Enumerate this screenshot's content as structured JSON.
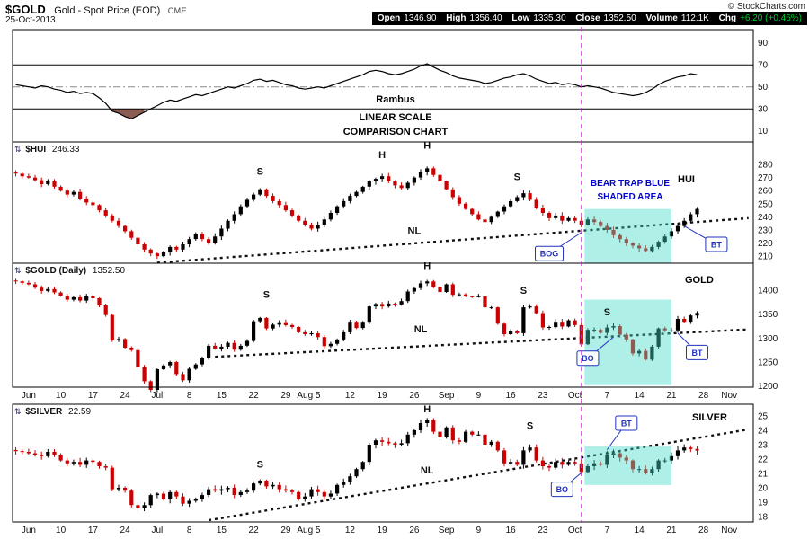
{
  "header": {
    "symbol": "$GOLD",
    "description": "Gold - Spot Price (EOD)",
    "exchange": "CME",
    "date": "25-Oct-2013",
    "copyright": "© StockCharts.com",
    "quote": [
      {
        "label": "Open",
        "value": "1346.90"
      },
      {
        "label": "High",
        "value": "1356.40"
      },
      {
        "label": "Low",
        "value": "1335.30"
      },
      {
        "label": "Close",
        "value": "1352.50"
      },
      {
        "label": "Volume",
        "value": "112.1K"
      },
      {
        "label": "Chg",
        "value": "+6.20 (+0.46%)"
      }
    ]
  },
  "panels": {
    "hui_label": {
      "symbol": "$HUI",
      "value": "246.33"
    },
    "gold_label": {
      "symbol": "$GOLD (Daily)",
      "value": "1352.50"
    },
    "silver_label": {
      "symbol": "$SILVER",
      "value": "22.59"
    },
    "hui_name": "HUI",
    "gold_name": "GOLD",
    "silver_name": "SILVER",
    "bear_trap_line1": "BEAR TRAP BLUE",
    "bear_trap_line2": "SHADED AREA",
    "indicator_line1": "Rambus",
    "indicator_line2": "LINEAR SCALE",
    "indicator_line3": "COMPARISON CHART"
  },
  "colors": {
    "candle_up": "#000000",
    "candle_down": "#cc0000",
    "bear_trap_fill": "#3fd9c6",
    "bear_trap_opacity": 0.42,
    "callout": "#2233bb",
    "divider": "#cc33cc",
    "indicator_shade": "#8b5d52",
    "annotation_blue": "#0000cc",
    "chg_green": "#00cc33",
    "quote_bar_bg": "#000000"
  },
  "divider_i": 88,
  "xaxis": {
    "ticks": [
      {
        "t": "Jun",
        "i": 2
      },
      {
        "t": "10",
        "i": 7
      },
      {
        "t": "17",
        "i": 12
      },
      {
        "t": "24",
        "i": 17
      },
      {
        "t": "Jul",
        "i": 22
      },
      {
        "t": "8",
        "i": 27
      },
      {
        "t": "15",
        "i": 32
      },
      {
        "t": "22",
        "i": 37
      },
      {
        "t": "29",
        "i": 42
      },
      {
        "t": "Aug",
        "i": 45
      },
      {
        "t": "5",
        "i": 47
      },
      {
        "t": "12",
        "i": 52
      },
      {
        "t": "19",
        "i": 57
      },
      {
        "t": "26",
        "i": 62
      },
      {
        "t": "Sep",
        "i": 67
      },
      {
        "t": "9",
        "i": 72
      },
      {
        "t": "16",
        "i": 77
      },
      {
        "t": "23",
        "i": 82
      },
      {
        "t": "Oct",
        "i": 87
      },
      {
        "t": "7",
        "i": 92
      },
      {
        "t": "14",
        "i": 97
      },
      {
        "t": "21",
        "i": 102
      },
      {
        "t": "28",
        "i": 107
      },
      {
        "t": "Nov",
        "i": 111
      }
    ]
  },
  "chart_data": [
    {
      "id": "indicator",
      "type": "line",
      "name": "comparison oscillator",
      "ylim": [
        0,
        102
      ],
      "yticks": [
        90,
        70,
        50,
        30,
        10
      ],
      "hlines": [
        70,
        30
      ],
      "centerline": 50,
      "shade_below": 30,
      "values": [
        52,
        51,
        50,
        49,
        51,
        50,
        48,
        47,
        45,
        46,
        44,
        45,
        44,
        40,
        35,
        28,
        26,
        23,
        21,
        24,
        27,
        30,
        33,
        36,
        38,
        37,
        39,
        41,
        43,
        42,
        44,
        46,
        48,
        50,
        49,
        51,
        53,
        56,
        57,
        55,
        56,
        54,
        52,
        51,
        49,
        48,
        49,
        50,
        49,
        51,
        53,
        55,
        57,
        59,
        61,
        64,
        65,
        64,
        62,
        61,
        62,
        64,
        66,
        69,
        71,
        68,
        65,
        63,
        60,
        58,
        57,
        56,
        55,
        53,
        54,
        56,
        58,
        59,
        61,
        62,
        60,
        57,
        55,
        53,
        54,
        52,
        53,
        52,
        50,
        51,
        50,
        49,
        47,
        45,
        44,
        43,
        42,
        43,
        45,
        48,
        52,
        55,
        57,
        59,
        60,
        62,
        61
      ]
    },
    {
      "id": "hui",
      "type": "candlestick",
      "symbol": "$HUI",
      "last": 246.33,
      "ylim": [
        204.6,
        297.2
      ],
      "yticks": [
        280,
        270,
        260,
        250,
        240,
        230,
        220,
        210
      ],
      "wick": 2.6,
      "closes": [
        273,
        271,
        270,
        268,
        265,
        267,
        263,
        260,
        257,
        259,
        254,
        251,
        249,
        245,
        241,
        237,
        233,
        229,
        224,
        219,
        215,
        212,
        210,
        213,
        217,
        215,
        219,
        223,
        227,
        223,
        220,
        225,
        231,
        237,
        242,
        248,
        253,
        257,
        261,
        256,
        252,
        249,
        245,
        241,
        237,
        234,
        231,
        234,
        238,
        243,
        248,
        252,
        256,
        259,
        263,
        267,
        269,
        271,
        267,
        264,
        262,
        266,
        270,
        274,
        277,
        272,
        267,
        261,
        255,
        250,
        246,
        242,
        238,
        236,
        240,
        244,
        248,
        252,
        255,
        258,
        253,
        247,
        243,
        239,
        241,
        237,
        239,
        237,
        234,
        238,
        236,
        233,
        230,
        226,
        223,
        220,
        218,
        216,
        214,
        217,
        221,
        225,
        229,
        233,
        237,
        242,
        246
      ],
      "neckline": {
        "i1": 22,
        "v1": 205,
        "i2": 114,
        "v2": 239
      },
      "labels": [
        {
          "text": "S",
          "i": 38,
          "v": 272
        },
        {
          "text": "H",
          "i": 57,
          "v": 285
        },
        {
          "text": "H",
          "i": 64,
          "v": 292
        },
        {
          "text": "S",
          "i": 78,
          "v": 268
        },
        {
          "text": "NL",
          "i": 62,
          "v": 227
        }
      ],
      "callouts": [
        {
          "text": "BOG",
          "i": 83,
          "v": 212,
          "ti": 88,
          "tv": 228
        },
        {
          "text": "BT",
          "i": 109,
          "v": 219,
          "ti": 104,
          "tv": 233
        }
      ],
      "bear_trap": {
        "i1": 89,
        "i2": 102.5,
        "v1": 204.6,
        "v2": 246
      }
    },
    {
      "id": "gold",
      "type": "candlestick",
      "symbol": "$GOLD",
      "last": 1352.5,
      "ylim": [
        1197.6,
        1456
      ],
      "yticks": [
        1400,
        1350,
        1300,
        1250,
        1200
      ],
      "wick": 6,
      "closes": [
        1418,
        1415,
        1412,
        1405,
        1398,
        1402,
        1395,
        1388,
        1380,
        1385,
        1378,
        1388,
        1383,
        1368,
        1348,
        1295,
        1298,
        1280,
        1275,
        1240,
        1210,
        1192,
        1235,
        1243,
        1250,
        1225,
        1212,
        1236,
        1245,
        1258,
        1284,
        1278,
        1282,
        1290,
        1276,
        1284,
        1294,
        1335,
        1342,
        1320,
        1328,
        1333,
        1327,
        1323,
        1312,
        1308,
        1310,
        1302,
        1283,
        1288,
        1297,
        1312,
        1334,
        1321,
        1334,
        1366,
        1371,
        1366,
        1372,
        1370,
        1377,
        1397,
        1404,
        1414,
        1418,
        1407,
        1396,
        1412,
        1390,
        1391,
        1387,
        1386,
        1387,
        1364,
        1364,
        1330,
        1308,
        1314,
        1310,
        1364,
        1366,
        1352,
        1322,
        1323,
        1334,
        1324,
        1337,
        1327,
        1287,
        1317,
        1317,
        1311,
        1322,
        1325,
        1307,
        1297,
        1268,
        1273,
        1255,
        1282,
        1320,
        1316,
        1316,
        1340,
        1334,
        1347,
        1352.5
      ],
      "neckline": {
        "i1": 31,
        "v1": 1261,
        "i2": 114,
        "v2": 1318
      },
      "labels": [
        {
          "text": "S",
          "i": 39,
          "v": 1384
        },
        {
          "text": "H",
          "i": 64,
          "v": 1444
        },
        {
          "text": "S",
          "i": 79,
          "v": 1392
        },
        {
          "text": "S",
          "i": 92,
          "v": 1347
        },
        {
          "text": "NL",
          "i": 63,
          "v": 1312
        }
      ],
      "callouts": [
        {
          "text": "BO",
          "i": 89,
          "v": 1258,
          "ti": 93,
          "tv": 1302
        },
        {
          "text": "BT",
          "i": 106,
          "v": 1270,
          "ti": 103,
          "tv": 1310
        }
      ],
      "bear_trap": {
        "i1": 89,
        "i2": 102.5,
        "v1": 1202,
        "v2": 1380
      }
    },
    {
      "id": "silver",
      "type": "candlestick",
      "symbol": "$SILVER",
      "last": 22.59,
      "ylim": [
        17.63,
        25.81
      ],
      "yticks": [
        25,
        24,
        23,
        22,
        21,
        20,
        19,
        18
      ],
      "wick": 0.28,
      "closes": [
        22.55,
        22.5,
        22.4,
        22.3,
        22.2,
        22.5,
        22.3,
        21.9,
        21.7,
        21.8,
        21.6,
        21.9,
        21.8,
        21.5,
        21.4,
        19.9,
        20.0,
        19.8,
        18.8,
        18.6,
        18.8,
        19.5,
        19.6,
        19.2,
        19.7,
        19.4,
        18.9,
        19.1,
        19.2,
        19.5,
        19.9,
        19.8,
        19.9,
        20.0,
        19.5,
        19.7,
        19.8,
        20.3,
        20.5,
        20.1,
        20.2,
        19.9,
        19.8,
        19.7,
        19.2,
        19.4,
        19.9,
        19.7,
        19.4,
        19.6,
        20.2,
        20.4,
        20.8,
        21.3,
        21.8,
        23.0,
        23.3,
        23.2,
        23.1,
        23.0,
        23.1,
        23.7,
        24.0,
        24.5,
        24.7,
        23.9,
        23.5,
        24.2,
        23.3,
        23.2,
        23.9,
        23.7,
        23.7,
        23.0,
        23.2,
        22.6,
        21.7,
        21.8,
        21.6,
        22.6,
        22.8,
        21.9,
        21.5,
        21.4,
        21.8,
        21.6,
        21.8,
        21.7,
        21.1,
        21.5,
        21.7,
        21.6,
        22.3,
        22.4,
        22.1,
        21.9,
        21.3,
        21.3,
        21.0,
        21.3,
        21.9,
        21.9,
        22.2,
        22.6,
        22.8,
        22.7,
        22.59
      ],
      "neckline": {
        "i1": 30,
        "v1": 17.75,
        "i2": 114,
        "v2": 24.06
      },
      "labels": [
        {
          "text": "S",
          "i": 38,
          "v": 21.4
        },
        {
          "text": "H",
          "i": 64,
          "v": 25.25
        },
        {
          "text": "S",
          "i": 80,
          "v": 24.1
        },
        {
          "text": "NL",
          "i": 64,
          "v": 21.0
        }
      ],
      "callouts": [
        {
          "text": "BT",
          "i": 95,
          "v": 24.5,
          "ti": 92,
          "tv": 22.65
        },
        {
          "text": "BO",
          "i": 85,
          "v": 19.9,
          "ti": 88,
          "tv": 21.05
        }
      ],
      "bear_trap": {
        "i1": 89,
        "i2": 102.5,
        "v1": 20.2,
        "v2": 22.9
      }
    }
  ]
}
